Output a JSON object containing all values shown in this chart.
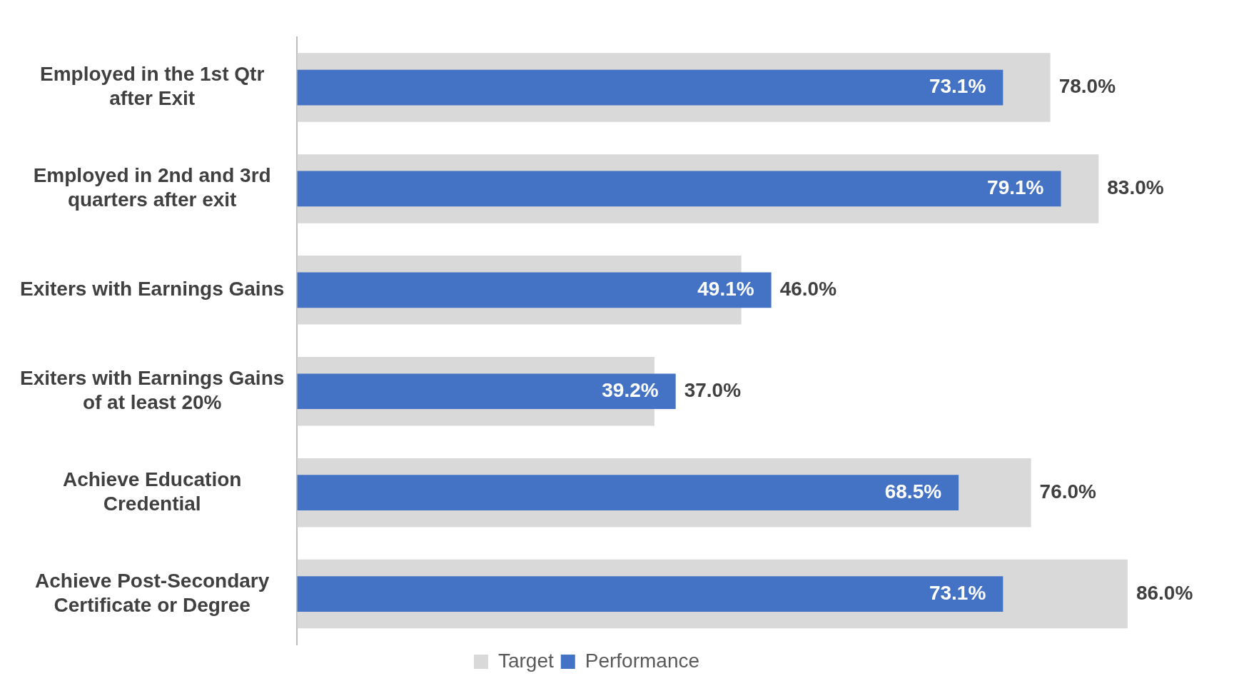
{
  "chart_data": {
    "type": "bar",
    "orientation": "horizontal",
    "categories": [
      "Employed in the 1st Qtr after Exit",
      "Employed in 2nd and 3rd quarters after exit",
      "Exiters with Earnings Gains",
      "Exiters with Earnings Gains of at least 20%",
      "Achieve Education Credential",
      "Achieve Post-Secondary Certificate or Degree"
    ],
    "series": [
      {
        "name": "Target",
        "color": "#d9d9d9",
        "values": [
          78.0,
          83.0,
          46.0,
          37.0,
          76.0,
          86.0
        ],
        "value_labels": [
          "78.0%",
          "83.0%",
          "46.0%",
          "37.0%",
          "76.0%",
          "86.0%"
        ]
      },
      {
        "name": "Performance",
        "color": "#4472c4",
        "values": [
          73.1,
          79.1,
          49.1,
          39.2,
          68.5,
          73.1
        ],
        "value_labels": [
          "73.1%",
          "79.1%",
          "49.1%",
          "39.2%",
          "68.5%",
          "73.1%"
        ]
      }
    ],
    "legend": "bottom"
  }
}
